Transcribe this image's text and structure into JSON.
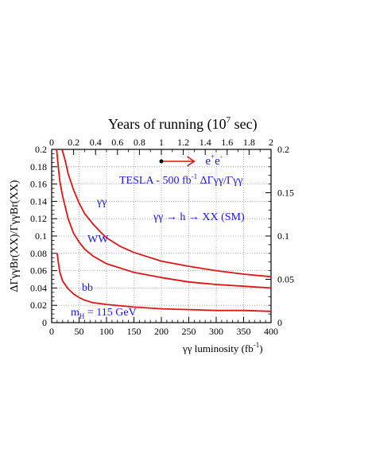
{
  "chart_data": {
    "type": "line",
    "title": "Years of running",
    "title_unit": "(10",
    "title_unit_exp": "7",
    "title_unit_tail": " sec)",
    "xlabel": "γγ luminosity (fb",
    "xlabel_exp": "-1",
    "xlabel_tail": ")",
    "ylabel": "ΔΓγγBr(XX)/ΓγγBr(XX)",
    "xlim": [
      0,
      400
    ],
    "ylim": [
      0,
      0.2
    ],
    "y2lim": [
      0,
      0.2
    ],
    "top_xlim": [
      0,
      2
    ],
    "grid": true,
    "x_ticks": [
      "0",
      "50",
      "100",
      "150",
      "200",
      "250",
      "300",
      "350",
      "400"
    ],
    "y_ticks": [
      "0",
      "0.02",
      "0.04",
      "0.06",
      "0.08",
      "0.1",
      "0.12",
      "0.14",
      "0.16",
      "0.18",
      "0.2"
    ],
    "y2_ticks": [
      "0",
      "0.05",
      "0.1",
      "0.15",
      "0.2"
    ],
    "top_ticks": [
      "0",
      "0.2",
      "0.4",
      "0.6",
      "0.8",
      "1",
      "1.2",
      "1.4",
      "1.6",
      "1.8",
      "2"
    ],
    "series": [
      {
        "name": "γγ",
        "x": [
          19,
          25,
          30,
          40,
          50,
          60,
          75,
          90,
          100,
          125,
          150,
          175,
          200,
          250,
          300,
          350,
          400
        ],
        "y": [
          0.2,
          0.186,
          0.172,
          0.153,
          0.138,
          0.126,
          0.114,
          0.104,
          0.098,
          0.088,
          0.081,
          0.076,
          0.071,
          0.065,
          0.06,
          0.056,
          0.053
        ]
      },
      {
        "name": "WW",
        "x": [
          9,
          12,
          15,
          20,
          30,
          40,
          50,
          60,
          75,
          100,
          150,
          200,
          250,
          300,
          350,
          400
        ],
        "y": [
          0.2,
          0.18,
          0.163,
          0.146,
          0.12,
          0.103,
          0.093,
          0.085,
          0.077,
          0.068,
          0.058,
          0.052,
          0.047,
          0.044,
          0.042,
          0.04
        ]
      },
      {
        "name": "bb",
        "x": [
          10,
          12,
          15,
          20,
          30,
          40,
          50,
          60,
          75,
          100,
          150,
          200,
          250,
          300,
          350,
          400
        ],
        "y": [
          0.08,
          0.07,
          0.058,
          0.048,
          0.039,
          0.033,
          0.029,
          0.026,
          0.023,
          0.021,
          0.018,
          0.016,
          0.015,
          0.014,
          0.014,
          0.013
        ]
      }
    ],
    "annotations": {
      "ee_label": "e",
      "ee_sup": "+",
      "ee_sub": "e",
      "ee_sup2": "-",
      "ee_arrow_start_year": 1.0,
      "ee_arrow_end_year": 1.3,
      "tesla_text": "TESLA - 500 fb",
      "tesla_exp": "-1",
      "tesla_tail": " ΔΓγγ/Γγγ",
      "process_text": "γγ → h → XX (SM)",
      "mass_label": "m",
      "mass_sub": "H",
      "mass_value": " = 115 GeV",
      "series_label_color": "#1a1ad6",
      "curve_color": "#e01414",
      "arrow_color": "#e01414"
    }
  }
}
